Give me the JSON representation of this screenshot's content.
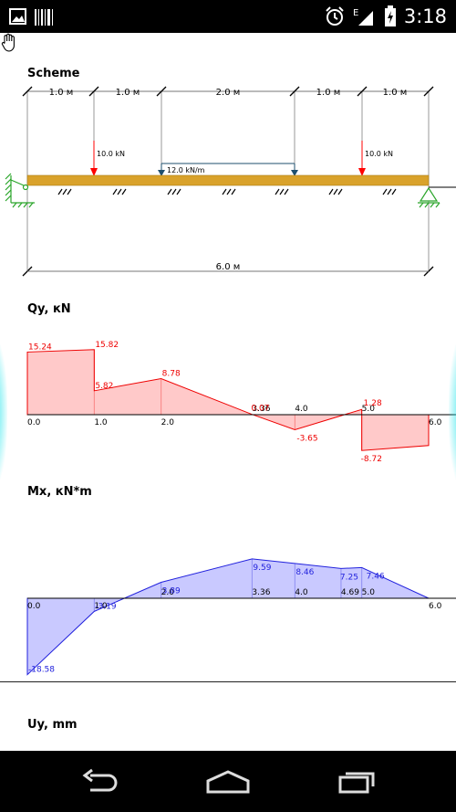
{
  "status_bar": {
    "time": "3:18",
    "icons": [
      "image-icon",
      "barcode-icon",
      "alarm-icon",
      "signal-icon",
      "battery-charging-icon"
    ],
    "network_label": "E"
  },
  "sections": {
    "scheme_title": "Scheme",
    "qy_title": "Qy, кN",
    "mx_title": "Mx, кN*m",
    "uy_title": "Uy, mm"
  },
  "scheme": {
    "span_labels": [
      "1.0 м",
      "1.0 м",
      "2.0 м",
      "1.0 м",
      "1.0 м"
    ],
    "total_label": "6.0 м",
    "point_loads": [
      {
        "x": 1.0,
        "label": "10.0 kN"
      },
      {
        "x": 5.0,
        "label": "10.0 kN"
      }
    ],
    "distributed_load": {
      "from": 2.0,
      "to": 4.0,
      "label": "12.0 kN/m"
    },
    "colors": {
      "beam": "#d9a22b",
      "point_load": "#ff0000",
      "distributed_load": "#1e4f6e",
      "support": "#2aa52a"
    }
  },
  "chart_data": [
    {
      "type": "area",
      "title": "Qy, кN",
      "color": "#ee0000",
      "fill": "#ffc9c9",
      "points": [
        [
          0,
          15.24
        ],
        [
          1,
          15.82
        ],
        [
          1,
          5.82
        ],
        [
          2,
          8.78
        ],
        [
          3.36,
          0.07
        ],
        [
          4,
          -3.65
        ],
        [
          5,
          1.28
        ],
        [
          5,
          -8.72
        ],
        [
          6,
          -7.5
        ]
      ],
      "ylim": [
        -10,
        17
      ],
      "x_ticks": [
        "0.0",
        "1.0",
        "2.0",
        "3.36",
        "4.0",
        "5.0",
        "6.0"
      ],
      "labels": [
        {
          "text": "15.24",
          "x": 0,
          "y": 15.24
        },
        {
          "text": "15.82",
          "x": 1,
          "y": 15.82
        },
        {
          "text": "5.82",
          "x": 1,
          "y": 5.82
        },
        {
          "text": "8.78",
          "x": 2,
          "y": 8.78
        },
        {
          "text": "0.07",
          "x": 3.36,
          "y": 0.07
        },
        {
          "text": "-3.65",
          "x": 4,
          "y": -3.65
        },
        {
          "text": "1.28",
          "x": 5,
          "y": 1.28
        },
        {
          "text": "-8.72",
          "x": 5,
          "y": -8.72
        }
      ]
    },
    {
      "type": "area",
      "title": "Mx, кN*m",
      "color": "#2222dd",
      "fill": "#c9c9ff",
      "points": [
        [
          0,
          -18.58
        ],
        [
          1,
          -3.19
        ],
        [
          2,
          3.89
        ],
        [
          3.36,
          9.59
        ],
        [
          4,
          8.46
        ],
        [
          4.69,
          7.25
        ],
        [
          5,
          7.46
        ],
        [
          6,
          0
        ]
      ],
      "ylim": [
        -20,
        11
      ],
      "x_ticks": [
        "0.0",
        "1.0",
        "2.0",
        "3.36",
        "4.0",
        "4.69",
        "5.0",
        "6.0"
      ],
      "labels": [
        {
          "text": "-18.58",
          "x": 0,
          "y": -18.58
        },
        {
          "text": "-3.19",
          "x": 1,
          "y": -3.19
        },
        {
          "text": "3.89",
          "x": 2,
          "y": 3.89
        },
        {
          "text": "9.59",
          "x": 3.36,
          "y": 9.59
        },
        {
          "text": "8.46",
          "x": 4,
          "y": 8.46
        },
        {
          "text": "7.25",
          "x": 4.69,
          "y": 7.25
        },
        {
          "text": "7.46",
          "x": 5,
          "y": 7.46
        }
      ]
    }
  ]
}
